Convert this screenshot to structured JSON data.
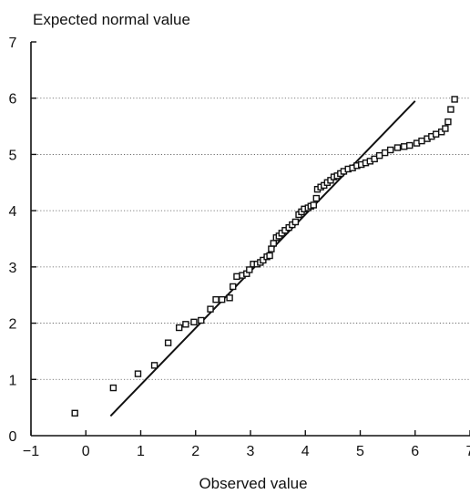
{
  "chart_data": {
    "type": "scatter",
    "title": "",
    "xlabel": "Observed value",
    "ylabel": "Expected normal value",
    "xlim": [
      -1,
      7
    ],
    "ylim": [
      0,
      7
    ],
    "xticks": [
      "−1",
      "0",
      "1",
      "2",
      "3",
      "4",
      "5",
      "6",
      "7"
    ],
    "yticks": [
      "0",
      "1",
      "2",
      "3",
      "4",
      "5",
      "6",
      "7"
    ],
    "grid": "horizontal dotted",
    "legend": "none",
    "reference_line": {
      "x": [
        0.45,
        6.0
      ],
      "y": [
        0.35,
        5.95
      ]
    },
    "series": [
      {
        "points": [
          [
            -0.2,
            0.4
          ],
          [
            0.5,
            0.85
          ],
          [
            0.95,
            1.1
          ],
          [
            1.25,
            1.25
          ],
          [
            1.5,
            1.65
          ],
          [
            1.7,
            1.92
          ],
          [
            1.82,
            1.98
          ],
          [
            1.97,
            2.02
          ],
          [
            2.1,
            2.05
          ],
          [
            2.27,
            2.25
          ],
          [
            2.37,
            2.42
          ],
          [
            2.48,
            2.42
          ],
          [
            2.62,
            2.45
          ],
          [
            2.68,
            2.65
          ],
          [
            2.75,
            2.83
          ],
          [
            2.85,
            2.85
          ],
          [
            2.93,
            2.88
          ],
          [
            2.98,
            2.95
          ],
          [
            3.05,
            3.05
          ],
          [
            3.12,
            3.05
          ],
          [
            3.18,
            3.08
          ],
          [
            3.23,
            3.12
          ],
          [
            3.3,
            3.18
          ],
          [
            3.35,
            3.2
          ],
          [
            3.38,
            3.32
          ],
          [
            3.42,
            3.42
          ],
          [
            3.47,
            3.52
          ],
          [
            3.52,
            3.55
          ],
          [
            3.57,
            3.6
          ],
          [
            3.63,
            3.65
          ],
          [
            3.7,
            3.7
          ],
          [
            3.76,
            3.75
          ],
          [
            3.82,
            3.8
          ],
          [
            3.88,
            3.93
          ],
          [
            3.93,
            3.98
          ],
          [
            3.98,
            4.03
          ],
          [
            4.05,
            4.05
          ],
          [
            4.1,
            4.08
          ],
          [
            4.15,
            4.1
          ],
          [
            4.2,
            4.22
          ],
          [
            4.22,
            4.38
          ],
          [
            4.28,
            4.42
          ],
          [
            4.34,
            4.45
          ],
          [
            4.4,
            4.5
          ],
          [
            4.46,
            4.54
          ],
          [
            4.52,
            4.6
          ],
          [
            4.58,
            4.62
          ],
          [
            4.64,
            4.66
          ],
          [
            4.7,
            4.7
          ],
          [
            4.78,
            4.74
          ],
          [
            4.86,
            4.76
          ],
          [
            4.94,
            4.8
          ],
          [
            5.02,
            4.82
          ],
          [
            5.1,
            4.85
          ],
          [
            5.18,
            4.88
          ],
          [
            5.26,
            4.92
          ],
          [
            5.35,
            4.98
          ],
          [
            5.45,
            5.03
          ],
          [
            5.55,
            5.08
          ],
          [
            5.68,
            5.12
          ],
          [
            5.8,
            5.14
          ],
          [
            5.9,
            5.16
          ],
          [
            6.03,
            5.2
          ],
          [
            6.12,
            5.24
          ],
          [
            6.22,
            5.28
          ],
          [
            6.3,
            5.32
          ],
          [
            6.38,
            5.36
          ],
          [
            6.48,
            5.4
          ],
          [
            6.55,
            5.46
          ],
          [
            6.6,
            5.58
          ],
          [
            6.65,
            5.8
          ],
          [
            6.72,
            5.98
          ]
        ]
      }
    ]
  }
}
